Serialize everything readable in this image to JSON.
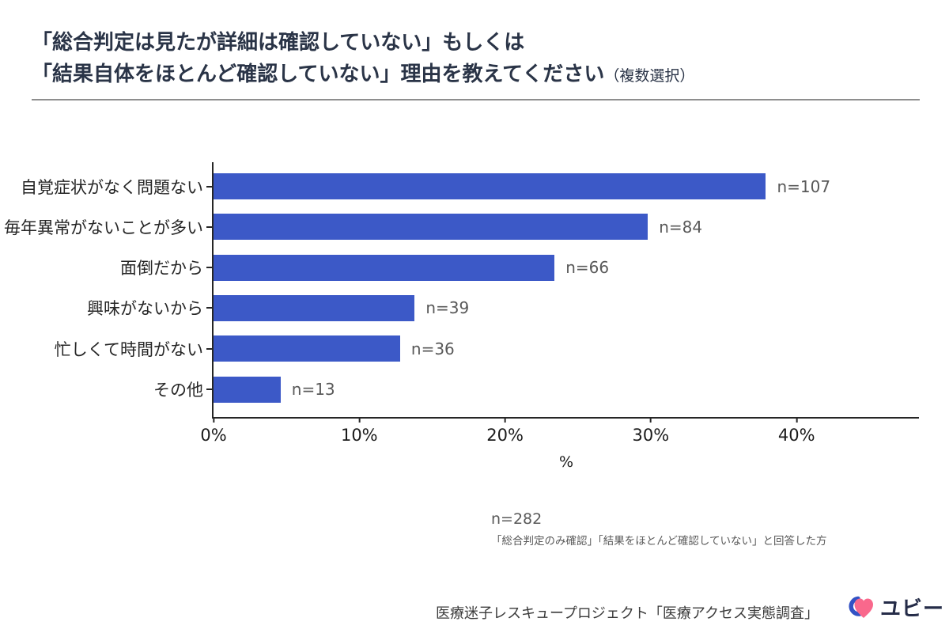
{
  "title": {
    "line1": "「総合判定は見たが詳細は確認していない」もしくは",
    "line2": "「結果自体をほとんど確認していない」理由を教えてください",
    "line2_suffix": "（複数選択）"
  },
  "chart_data": {
    "type": "bar",
    "orientation": "horizontal",
    "categories": [
      "自覚症状がなく問題ない",
      "毎年異常がないことが多い",
      "面倒だから",
      "興味がないから",
      "忙しくて時間がない",
      "その他"
    ],
    "values_n": [
      107,
      84,
      66,
      39,
      36,
      13
    ],
    "values_pct": [
      37.9,
      29.8,
      23.4,
      13.8,
      12.8,
      4.6
    ],
    "value_labels": [
      "n=107",
      "n=84",
      "n=66",
      "n=39",
      "n=36",
      "n=13"
    ],
    "total_n": 282,
    "xlabel": "%",
    "x_ticks": [
      "0%",
      "10%",
      "20%",
      "30%",
      "40%"
    ],
    "x_tick_values": [
      0,
      10,
      20,
      30,
      40
    ],
    "xlim": [
      0,
      48.4
    ],
    "bar_color": "#3C59C7",
    "axis_color": "#262626",
    "grid": false,
    "legend": "none"
  },
  "note": {
    "line1": "n=282",
    "line2": "「総合判定のみ確認」「結果をほとんど確認していない」と回答した方"
  },
  "footer": {
    "source": "医療迷子レスキュープロジェクト「医療アクセス実態調査」",
    "logo_text": "ユビー"
  },
  "colors": {
    "title": "#2A3447",
    "bar": "#3C59C7",
    "value_label": "#595959",
    "logo_pink": "#F9688C",
    "logo_blue": "#3352C4",
    "logo_navy": "#252C48"
  }
}
